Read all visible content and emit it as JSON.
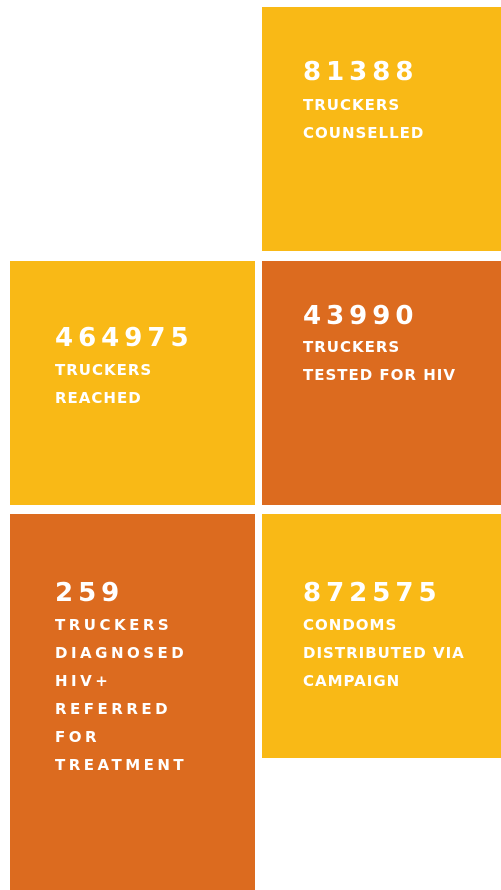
{
  "tiles": [
    {
      "value": 81388,
      "lines": [
        "TRUCKERS",
        "COUNSELLED"
      ]
    },
    {
      "value": 464975,
      "lines": [
        "TRUCKERS",
        "REACHED"
      ]
    },
    {
      "value": 43990,
      "lines": [
        "TRUCKERS",
        "TESTED FOR HIV"
      ]
    },
    {
      "value": 259,
      "lines": [
        "TRUCKERS",
        "DIAGNOSED",
        "HIV+",
        "REFERRED",
        "FOR",
        "TREATMENT"
      ]
    },
    {
      "value": 872575,
      "lines": [
        "CONDOMS",
        "DISTRIBUTED VIA",
        "CAMPAIGN"
      ]
    }
  ]
}
